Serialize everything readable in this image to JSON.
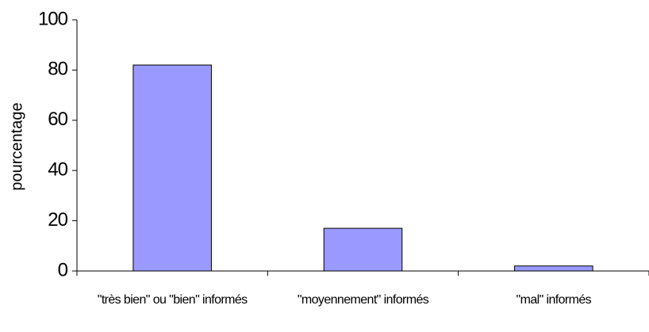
{
  "chart_data": {
    "type": "bar",
    "y_label": "pourcentage",
    "categories": [
      "\"très bien\" ou \"bien\" informés",
      "\"moyennement\" informés",
      "\"mal\" informés"
    ],
    "values": [
      82,
      17,
      2
    ],
    "color": "#9999ff",
    "ylim": [
      0,
      100
    ],
    "yticks": [
      0,
      20,
      40,
      60,
      80,
      100
    ],
    "grid": false
  }
}
